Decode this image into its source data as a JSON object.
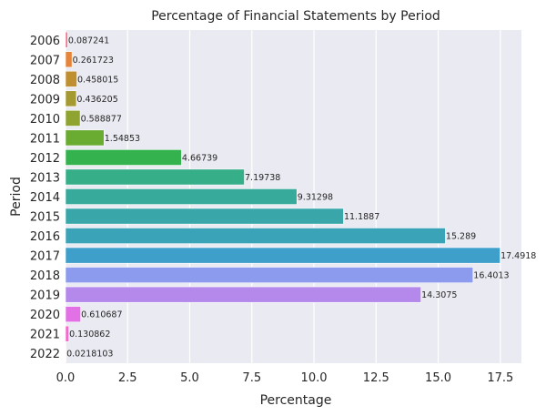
{
  "chart_data": {
    "type": "bar",
    "orientation": "horizontal",
    "title": "Percentage of Financial Statements by Period",
    "xlabel": "Percentage",
    "ylabel": "Period",
    "xlim": [
      0,
      18.35
    ],
    "xticks": [
      "0.0",
      "2.5",
      "5.0",
      "7.5",
      "10.0",
      "12.5",
      "15.0",
      "17.5"
    ],
    "grid": true,
    "background": "#eaeaf2",
    "categories": [
      "2006",
      "2007",
      "2008",
      "2009",
      "2010",
      "2011",
      "2012",
      "2013",
      "2014",
      "2015",
      "2016",
      "2017",
      "2018",
      "2019",
      "2020",
      "2021",
      "2022"
    ],
    "values": [
      0.087241,
      0.261723,
      0.458015,
      0.436205,
      0.588877,
      1.54853,
      4.66739,
      7.19738,
      9.31298,
      11.1887,
      15.289,
      17.4918,
      16.4013,
      14.3075,
      0.610687,
      0.130862,
      0.0218103
    ],
    "value_labels": [
      "0.087241",
      "0.261723",
      "0.458015",
      "0.436205",
      "0.588877",
      "1.54853",
      "4.66739",
      "7.19738",
      "9.31298",
      "11.1887",
      "15.289",
      "17.4918",
      "16.4013",
      "14.3075",
      "0.610687",
      "0.130862",
      "0.0218103"
    ],
    "colors": [
      "#f77189",
      "#e6843a",
      "#c08f32",
      "#a49a31",
      "#8fa331",
      "#6aab31",
      "#34b24e",
      "#36ae88",
      "#38aa9c",
      "#39a7a9",
      "#3ba3b7",
      "#3e9fcb",
      "#8c9bed",
      "#b589ec",
      "#e171e5",
      "#f36ac8",
      "#f66eaa"
    ]
  }
}
